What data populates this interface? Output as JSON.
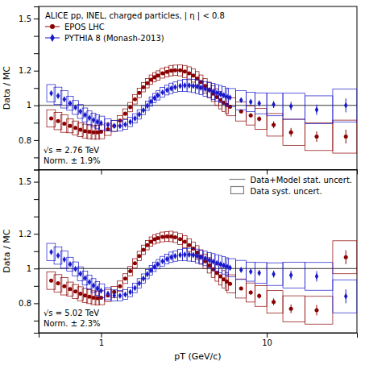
{
  "chart_data": [
    {
      "type": "scatter",
      "title": "ALICE pp, INEL, charged particles, | η | < 0.8",
      "ylabel": "Data / MC",
      "annotations": [
        "√s = 2.76 TeV",
        "Norm. ± 1.9%"
      ],
      "log": "x",
      "legend": "upper left",
      "tick_labels": "y",
      "reference_line": 1,
      "xlim": [
        0.42,
        35
      ],
      "xticks": [
        1,
        10
      ],
      "ylim": [
        0.63,
        1.57
      ],
      "yticks": [
        {
          "value": 0.7,
          "label": null
        },
        0.8,
        {
          "value": 0.9,
          "label": null
        },
        1,
        {
          "value": 1.1,
          "label": null
        },
        1.2,
        {
          "value": 1.3,
          "label": null
        },
        {
          "value": 1.4,
          "label": null
        },
        1.5
      ],
      "x": [
        0.5,
        0.55,
        0.6,
        0.65,
        0.7,
        0.75,
        0.8,
        0.85,
        0.9,
        0.95,
        1.0,
        1.1,
        1.2,
        1.3,
        1.4,
        1.5,
        1.6,
        1.7,
        1.8,
        1.9,
        2.0,
        2.1,
        2.2,
        2.35,
        2.5,
        2.65,
        2.8,
        3.0,
        3.2,
        3.4,
        3.6,
        3.8,
        4.0,
        4.25,
        4.5,
        4.75,
        5.0,
        5.25,
        5.5,
        5.75,
        6.0,
        7.0,
        8.0,
        9.0,
        11.0,
        14.0,
        20.0,
        30.0
      ],
      "x_low": [
        0.47,
        0.52,
        0.57,
        0.62,
        0.67,
        0.72,
        0.77,
        0.82,
        0.87,
        0.92,
        0.97,
        1.05,
        1.15,
        1.25,
        1.35,
        1.45,
        1.55,
        1.65,
        1.75,
        1.85,
        1.95,
        2.05,
        2.15,
        2.27,
        2.42,
        2.57,
        2.72,
        2.9,
        3.1,
        3.3,
        3.5,
        3.7,
        3.9,
        4.12,
        4.37,
        4.62,
        4.87,
        5.12,
        5.37,
        5.62,
        5.75,
        6.5,
        7.5,
        8.5,
        10.0,
        12.5,
        17.0,
        25.0
      ],
      "x_high": [
        0.53,
        0.58,
        0.63,
        0.68,
        0.73,
        0.78,
        0.83,
        0.88,
        0.93,
        0.98,
        1.05,
        1.15,
        1.25,
        1.35,
        1.45,
        1.55,
        1.65,
        1.75,
        1.85,
        1.95,
        2.05,
        2.15,
        2.27,
        2.42,
        2.57,
        2.72,
        2.9,
        3.1,
        3.3,
        3.5,
        3.7,
        3.9,
        4.12,
        4.37,
        4.62,
        4.87,
        5.12,
        5.37,
        5.62,
        5.87,
        6.5,
        7.5,
        8.5,
        10.0,
        12.5,
        17.0,
        25.0,
        35.0
      ],
      "series": [
        {
          "name": "EPOS LHC",
          "color": "#8B0000",
          "marker": "circle",
          "values": [
            0.925,
            0.91,
            0.895,
            0.882,
            0.87,
            0.86,
            0.852,
            0.848,
            0.845,
            0.845,
            0.848,
            0.862,
            0.882,
            0.912,
            0.952,
            0.99,
            1.035,
            1.072,
            1.105,
            1.128,
            1.148,
            1.162,
            1.172,
            1.185,
            1.193,
            1.2,
            1.202,
            1.202,
            1.195,
            1.185,
            1.172,
            1.155,
            1.135,
            1.112,
            1.09,
            1.068,
            1.048,
            1.03,
            1.015,
            1.002,
            0.992,
            0.965,
            0.942,
            0.922,
            0.888,
            0.845,
            0.82,
            0.82
          ],
          "stat_errors": [
            0.005,
            0.005,
            0.005,
            0.005,
            0.005,
            0.005,
            0.005,
            0.005,
            0.005,
            0.005,
            0.005,
            0.005,
            0.005,
            0.005,
            0.005,
            0.005,
            0.005,
            0.005,
            0.005,
            0.005,
            0.005,
            0.005,
            0.005,
            0.005,
            0.005,
            0.005,
            0.005,
            0.005,
            0.005,
            0.005,
            0.005,
            0.005,
            0.005,
            0.005,
            0.005,
            0.005,
            0.005,
            0.005,
            0.005,
            0.005,
            0.005,
            0.01,
            0.012,
            0.015,
            0.02,
            0.025,
            0.03,
            0.04
          ],
          "syst_errors": [
            0.05,
            0.05,
            0.05,
            0.04,
            0.04,
            0.04,
            0.04,
            0.04,
            0.04,
            0.04,
            0.04,
            0.035,
            0.032,
            0.03,
            0.028,
            0.027,
            0.027,
            0.027,
            0.027,
            0.027,
            0.027,
            0.027,
            0.027,
            0.028,
            0.028,
            0.03,
            0.03,
            0.032,
            0.035,
            0.037,
            0.038,
            0.04,
            0.04,
            0.042,
            0.044,
            0.046,
            0.048,
            0.05,
            0.05,
            0.05,
            0.052,
            0.055,
            0.055,
            0.06,
            0.065,
            0.075,
            0.08,
            0.095
          ]
        },
        {
          "name": "PYTHIA 8 (Monash-2013)",
          "color": "#1919CC",
          "marker": "diamond",
          "values": [
            1.07,
            1.055,
            1.035,
            1.012,
            0.988,
            0.965,
            0.945,
            0.928,
            0.915,
            0.905,
            0.898,
            0.888,
            0.882,
            0.882,
            0.89,
            0.905,
            0.925,
            0.948,
            0.972,
            0.998,
            1.022,
            1.042,
            1.058,
            1.075,
            1.088,
            1.098,
            1.105,
            1.112,
            1.115,
            1.115,
            1.112,
            1.108,
            1.102,
            1.095,
            1.088,
            1.08,
            1.072,
            1.065,
            1.058,
            1.05,
            1.045,
            1.03,
            1.02,
            1.012,
            1.005,
            0.995,
            0.975,
            1.0
          ],
          "stat_errors": [
            0.005,
            0.005,
            0.005,
            0.005,
            0.005,
            0.005,
            0.005,
            0.005,
            0.005,
            0.005,
            0.005,
            0.005,
            0.005,
            0.005,
            0.005,
            0.005,
            0.005,
            0.005,
            0.005,
            0.005,
            0.005,
            0.005,
            0.005,
            0.005,
            0.005,
            0.005,
            0.005,
            0.005,
            0.005,
            0.005,
            0.005,
            0.005,
            0.005,
            0.005,
            0.005,
            0.005,
            0.005,
            0.005,
            0.005,
            0.005,
            0.005,
            0.01,
            0.012,
            0.015,
            0.02,
            0.025,
            0.03,
            0.04
          ],
          "syst_errors": [
            0.05,
            0.05,
            0.05,
            0.04,
            0.04,
            0.04,
            0.04,
            0.04,
            0.04,
            0.04,
            0.04,
            0.035,
            0.032,
            0.03,
            0.028,
            0.027,
            0.027,
            0.027,
            0.027,
            0.027,
            0.027,
            0.027,
            0.027,
            0.028,
            0.028,
            0.03,
            0.03,
            0.032,
            0.035,
            0.037,
            0.038,
            0.04,
            0.04,
            0.042,
            0.044,
            0.046,
            0.048,
            0.05,
            0.05,
            0.05,
            0.052,
            0.055,
            0.055,
            0.06,
            0.065,
            0.075,
            0.08,
            0.095
          ]
        }
      ]
    },
    {
      "type": "scatter",
      "xlabel": "pT (GeV/c)",
      "ylabel": "Data / MC",
      "annotations": [
        "√s = 5.02 TeV",
        "Norm. ± 2.3%"
      ],
      "log": "x",
      "legend": "upper right",
      "uncertainty_legend": {
        "line": "Data+Model stat. uncert.",
        "box": "Data syst. uncert."
      },
      "reference_line": 1,
      "xlim": [
        0.42,
        35
      ],
      "xticks": [
        1,
        10
      ],
      "ylim": [
        0.63,
        1.57
      ],
      "yticks": [
        {
          "value": 0.7,
          "label": null
        },
        0.8,
        {
          "value": 0.9,
          "label": null
        },
        1,
        {
          "value": 1.1,
          "label": null
        },
        1.2,
        {
          "value": 1.3,
          "label": null
        },
        {
          "value": 1.4,
          "label": null
        },
        1.5
      ],
      "x": [
        0.5,
        0.55,
        0.6,
        0.65,
        0.7,
        0.75,
        0.8,
        0.85,
        0.9,
        0.95,
        1.0,
        1.1,
        1.2,
        1.3,
        1.4,
        1.5,
        1.6,
        1.7,
        1.8,
        1.9,
        2.0,
        2.1,
        2.2,
        2.35,
        2.5,
        2.65,
        2.8,
        3.0,
        3.2,
        3.4,
        3.6,
        3.8,
        4.0,
        4.25,
        4.5,
        4.75,
        5.0,
        5.25,
        5.5,
        5.75,
        6.0,
        7.0,
        8.0,
        9.0,
        11.0,
        14.0,
        20.0,
        30.0
      ],
      "x_low": [
        0.47,
        0.52,
        0.57,
        0.62,
        0.67,
        0.72,
        0.77,
        0.82,
        0.87,
        0.92,
        0.97,
        1.05,
        1.15,
        1.25,
        1.35,
        1.45,
        1.55,
        1.65,
        1.75,
        1.85,
        1.95,
        2.05,
        2.15,
        2.27,
        2.42,
        2.57,
        2.72,
        2.9,
        3.1,
        3.3,
        3.5,
        3.7,
        3.9,
        4.12,
        4.37,
        4.62,
        4.87,
        5.12,
        5.37,
        5.62,
        5.75,
        6.5,
        7.5,
        8.5,
        10.0,
        12.5,
        17.0,
        25.0
      ],
      "x_high": [
        0.53,
        0.58,
        0.63,
        0.68,
        0.73,
        0.78,
        0.83,
        0.88,
        0.93,
        0.98,
        1.05,
        1.15,
        1.25,
        1.35,
        1.45,
        1.55,
        1.65,
        1.75,
        1.85,
        1.95,
        2.05,
        2.15,
        2.27,
        2.42,
        2.57,
        2.72,
        2.9,
        3.1,
        3.3,
        3.5,
        3.7,
        3.9,
        4.12,
        4.37,
        4.62,
        4.87,
        5.12,
        5.37,
        5.62,
        5.87,
        6.5,
        7.5,
        8.5,
        10.0,
        12.5,
        17.0,
        25.0,
        35.0
      ],
      "series": [
        {
          "color": "#8B0000",
          "marker": "circle",
          "values": [
            0.93,
            0.915,
            0.898,
            0.882,
            0.868,
            0.855,
            0.845,
            0.838,
            0.832,
            0.83,
            0.832,
            0.845,
            0.865,
            0.898,
            0.942,
            0.985,
            1.03,
            1.072,
            1.108,
            1.135,
            1.155,
            1.168,
            1.175,
            1.182,
            1.185,
            1.185,
            1.18,
            1.17,
            1.155,
            1.135,
            1.115,
            1.092,
            1.068,
            1.042,
            1.018,
            0.995,
            0.975,
            0.955,
            0.938,
            0.925,
            0.912,
            0.885,
            0.862,
            0.842,
            0.808,
            0.768,
            0.76,
            1.065
          ],
          "stat_errors": [
            0.005,
            0.005,
            0.005,
            0.005,
            0.005,
            0.005,
            0.005,
            0.005,
            0.005,
            0.005,
            0.005,
            0.005,
            0.005,
            0.005,
            0.005,
            0.005,
            0.005,
            0.005,
            0.005,
            0.005,
            0.005,
            0.005,
            0.005,
            0.005,
            0.005,
            0.005,
            0.005,
            0.005,
            0.005,
            0.005,
            0.005,
            0.005,
            0.005,
            0.005,
            0.005,
            0.005,
            0.005,
            0.005,
            0.005,
            0.005,
            0.005,
            0.01,
            0.012,
            0.015,
            0.02,
            0.025,
            0.03,
            0.04
          ],
          "syst_errors": [
            0.05,
            0.05,
            0.05,
            0.04,
            0.04,
            0.04,
            0.04,
            0.04,
            0.04,
            0.04,
            0.04,
            0.035,
            0.032,
            0.03,
            0.028,
            0.027,
            0.027,
            0.027,
            0.027,
            0.027,
            0.027,
            0.027,
            0.027,
            0.028,
            0.028,
            0.03,
            0.03,
            0.032,
            0.035,
            0.037,
            0.038,
            0.04,
            0.04,
            0.042,
            0.044,
            0.046,
            0.048,
            0.05,
            0.05,
            0.05,
            0.052,
            0.055,
            0.055,
            0.06,
            0.065,
            0.075,
            0.08,
            0.095
          ]
        },
        {
          "color": "#1919CC",
          "marker": "diamond",
          "values": [
            1.095,
            1.075,
            1.052,
            1.025,
            0.998,
            0.97,
            0.945,
            0.922,
            0.902,
            0.885,
            0.872,
            0.855,
            0.845,
            0.843,
            0.85,
            0.865,
            0.888,
            0.915,
            0.942,
            0.968,
            0.99,
            1.01,
            1.025,
            1.042,
            1.055,
            1.065,
            1.072,
            1.078,
            1.08,
            1.08,
            1.078,
            1.072,
            1.065,
            1.058,
            1.048,
            1.04,
            1.032,
            1.025,
            1.018,
            1.012,
            1.005,
            0.992,
            0.982,
            0.975,
            0.968,
            0.962,
            0.955,
            0.84
          ],
          "stat_errors": [
            0.005,
            0.005,
            0.005,
            0.005,
            0.005,
            0.005,
            0.005,
            0.005,
            0.005,
            0.005,
            0.005,
            0.005,
            0.005,
            0.005,
            0.005,
            0.005,
            0.005,
            0.005,
            0.005,
            0.005,
            0.005,
            0.005,
            0.005,
            0.005,
            0.005,
            0.005,
            0.005,
            0.005,
            0.005,
            0.005,
            0.005,
            0.005,
            0.005,
            0.005,
            0.005,
            0.005,
            0.005,
            0.005,
            0.005,
            0.005,
            0.005,
            0.01,
            0.012,
            0.015,
            0.02,
            0.025,
            0.03,
            0.04
          ],
          "syst_errors": [
            0.05,
            0.05,
            0.05,
            0.04,
            0.04,
            0.04,
            0.04,
            0.04,
            0.04,
            0.04,
            0.04,
            0.035,
            0.032,
            0.03,
            0.028,
            0.027,
            0.027,
            0.027,
            0.027,
            0.027,
            0.027,
            0.027,
            0.027,
            0.028,
            0.028,
            0.03,
            0.03,
            0.032,
            0.035,
            0.037,
            0.038,
            0.04,
            0.04,
            0.042,
            0.044,
            0.046,
            0.048,
            0.05,
            0.05,
            0.05,
            0.052,
            0.055,
            0.055,
            0.06,
            0.065,
            0.075,
            0.08,
            0.095
          ]
        }
      ]
    }
  ]
}
